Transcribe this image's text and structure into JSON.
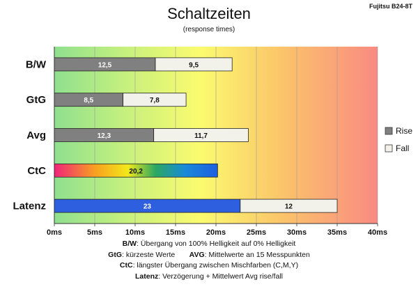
{
  "chart_data": {
    "type": "bar",
    "orientation": "horizontal",
    "stacked": true,
    "title": "Schaltzeiten",
    "subtitle": "(response times)",
    "model": "Fujitsu B24-8T",
    "categories": [
      "B/W",
      "GtG",
      "Avg",
      "CtC",
      "Latenz"
    ],
    "series": [
      {
        "name": "Rise",
        "values": [
          12.5,
          8.5,
          12.3,
          null,
          null
        ]
      },
      {
        "name": "Fall",
        "values": [
          9.5,
          7.8,
          11.7,
          null,
          12
        ]
      }
    ],
    "ctc_value": 20.2,
    "latency_value": 23,
    "x_ticks": [
      "0ms",
      "5ms",
      "10ms",
      "15ms",
      "20ms",
      "25ms",
      "30ms",
      "35ms",
      "40ms"
    ],
    "xlim": [
      0,
      40
    ],
    "grid": true,
    "legend_position": "right",
    "labels": {
      "bw": [
        "12,5",
        "9,5"
      ],
      "gtg": [
        "8,5",
        "7,8"
      ],
      "avg": [
        "12,3",
        "11,7"
      ],
      "ctc": "20,2",
      "latenz": [
        "23",
        "12"
      ]
    },
    "colors": {
      "rise": "#808080",
      "fall": "#f2f2ea",
      "latency": "#2e5fde"
    }
  },
  "notes": [
    {
      "label": "B/W",
      "text": ":  Übergang von 100% Helligkeit auf 0% Helligkeit"
    },
    {
      "label": "GtG",
      "text": ": kürzeste  Werte",
      "label2": "AVG",
      "text2": ": Mittelwerte an 15 Messpunkten"
    },
    {
      "label": "CtC",
      "text": ": längster Übergang  zwischen Mischfarben (C,M,Y)"
    },
    {
      "label": "Latenz",
      "text": ": Verzögerung  + Mittelwert Avg rise/fall"
    }
  ]
}
